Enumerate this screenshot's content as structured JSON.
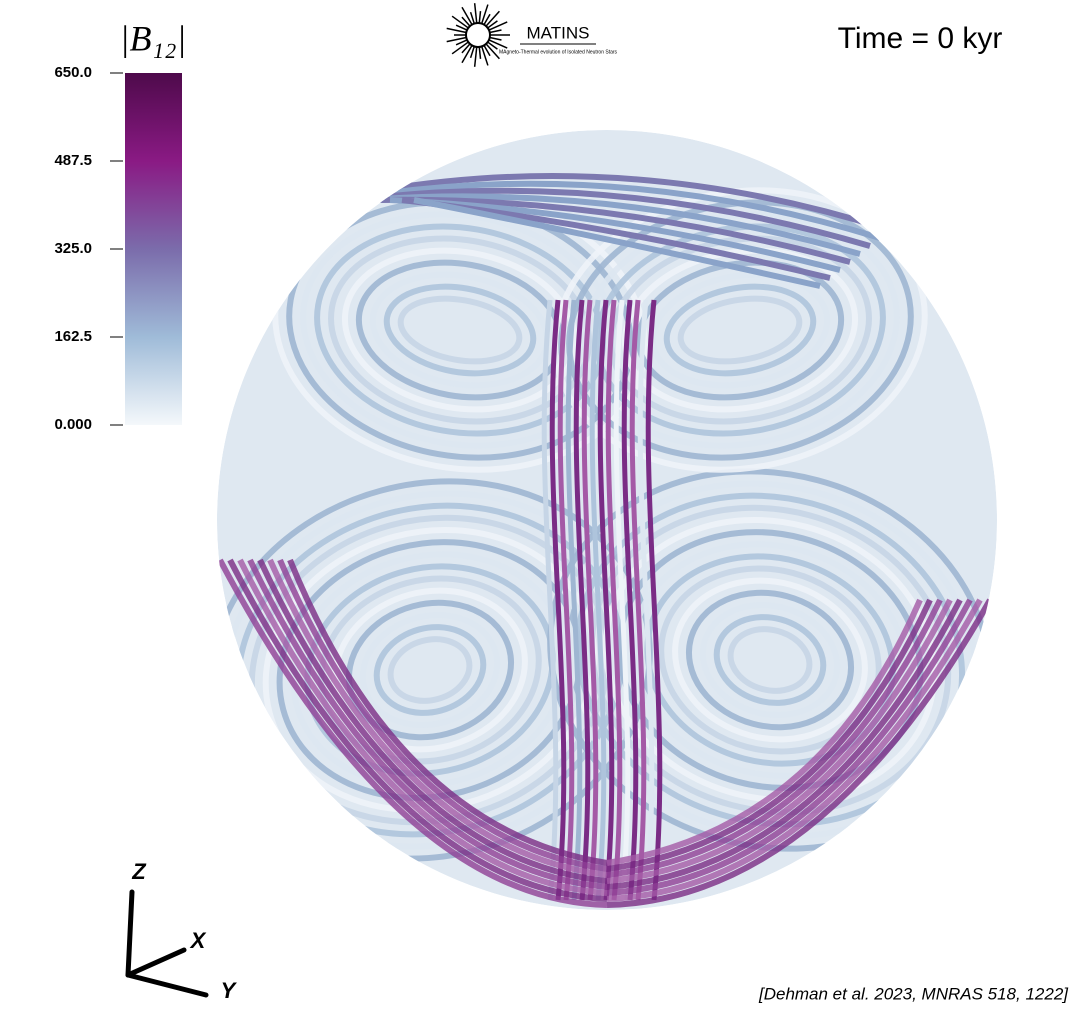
{
  "colorbar": {
    "title": "|B₁₂|",
    "range": [
      0,
      650
    ],
    "ticks": [
      {
        "value": 650,
        "label": "650.0"
      },
      487.5,
      {
        "value": 325,
        "label": "325.0"
      },
      162.5,
      {
        "value": 0,
        "label": "0.000"
      }
    ],
    "colors": [
      "#f4f8fb",
      "#9fbbd8",
      "#7b6cab",
      "#8a1a84",
      "#4e0a4b"
    ]
  },
  "logo": {
    "name": "MATINS",
    "subtitle": "MAgneto-Thermal evolution of Isolated Neutron Stars"
  },
  "time": "Time = 0 kyr",
  "axes": {
    "z": "Z",
    "x": "X",
    "y": "Y"
  },
  "citation": "[Dehman et al. 2023, MNRAS 518, 1222]"
}
